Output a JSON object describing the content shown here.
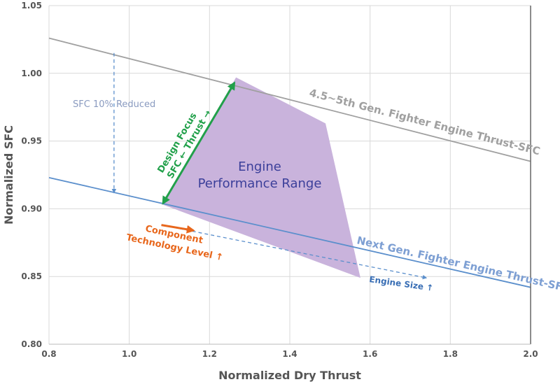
{
  "chart_data": {
    "type": "line",
    "title": "",
    "xlabel": "Normalized Dry Thrust",
    "ylabel": "Normalized SFC",
    "xlim": [
      0.8,
      2.0
    ],
    "ylim": [
      0.8,
      1.05
    ],
    "grid": true,
    "x_ticks": [
      "0.8",
      "1.0",
      "1.2",
      "1.4",
      "1.6",
      "1.8",
      "2.0"
    ],
    "y_ticks": [
      "0.80",
      "0.85",
      "0.90",
      "0.95",
      "1.00",
      "1.05"
    ],
    "series": [
      {
        "name": "4.5~5th Gen. Fighter Engine Thrust-SFC",
        "x": [
          0.8,
          2.0
        ],
        "y": [
          1.026,
          0.935
        ],
        "color": "#a0a0a0"
      },
      {
        "name": "Next Gen. Fighter Engine Thrust-SFC",
        "x": [
          0.8,
          2.0
        ],
        "y": [
          0.923,
          0.842
        ],
        "color": "#5b8fcc"
      }
    ],
    "region": {
      "label_line1": "Engine",
      "label_line2": "Performance Range",
      "points": [
        [
          1.266,
          0.997
        ],
        [
          1.489,
          0.963
        ],
        [
          1.576,
          0.849
        ],
        [
          1.084,
          0.903
        ]
      ],
      "color": "#c9b3dc",
      "label_color": "#3b3f9a"
    },
    "annotations": {
      "sfc_reduced": {
        "text": "SFC 10% Reduced",
        "x": 0.962,
        "y_from": 1.015,
        "y_to": 0.912,
        "color": "#8a9bc0"
      },
      "design_focus": {
        "line1": "Design Focus",
        "line2": "SFC ← Thrust →",
        "from": [
          1.084,
          0.904
        ],
        "to": [
          1.262,
          0.993
        ],
        "color": "#21a04a"
      },
      "component": {
        "line1": "Component",
        "line2": "Technology Level ↑",
        "from": [
          1.08,
          0.888
        ],
        "to": [
          1.16,
          0.884
        ],
        "color": "#e8671c"
      },
      "engine_size": {
        "text": "Engine Size ↑",
        "from": [
          1.08,
          0.888
        ],
        "to": [
          1.74,
          0.849
        ],
        "color": "#3a6fb5"
      },
      "gray_label": "4.5~5th Gen. Fighter Engine Thrust-SFC",
      "blue_label": "Next Gen. Fighter Engine Thrust-SFC"
    }
  }
}
